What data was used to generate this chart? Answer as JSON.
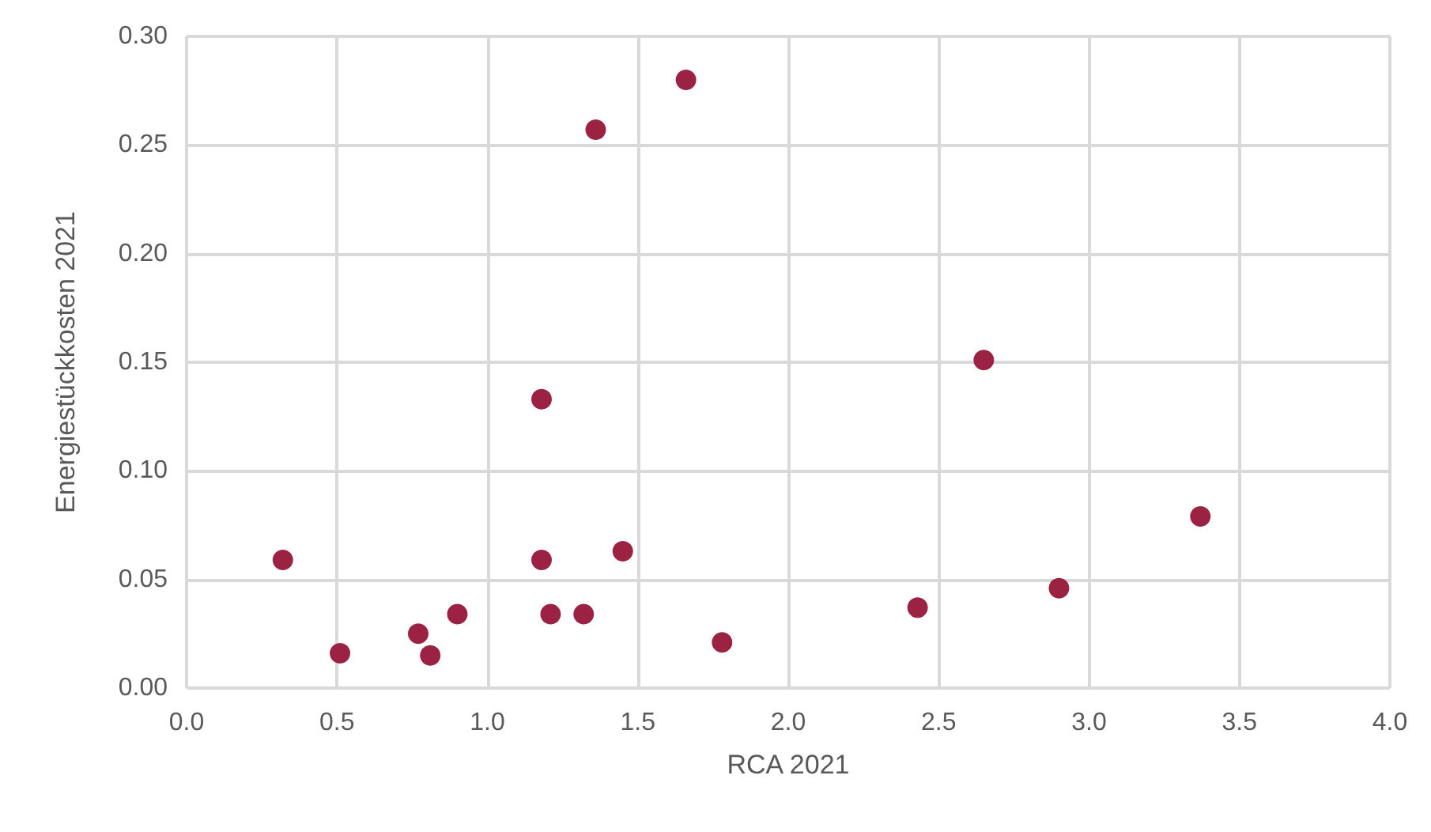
{
  "chart_data": {
    "type": "scatter",
    "xlabel": "RCA 2021",
    "ylabel": "Energiestückkosten 2021",
    "x": [
      0.32,
      0.51,
      0.77,
      0.81,
      0.9,
      1.18,
      1.18,
      1.21,
      1.32,
      1.36,
      1.45,
      1.66,
      1.78,
      2.43,
      2.65,
      2.9,
      3.37
    ],
    "series": [
      {
        "color": "#9b2242",
        "values": [
          0.059,
          0.016,
          0.025,
          0.015,
          0.034,
          0.133,
          0.059,
          0.034,
          0.034,
          0.257,
          0.063,
          0.28,
          0.021,
          0.037,
          0.151,
          0.046,
          0.079
        ]
      }
    ],
    "xlim": [
      0,
      4
    ],
    "xticks": [
      {
        "value": 0,
        "label": "0.0"
      },
      {
        "value": 0.5,
        "label": "0.5"
      },
      {
        "value": 1,
        "label": "1.0"
      },
      {
        "value": 1.5,
        "label": "1.5"
      },
      {
        "value": 2,
        "label": "2.0"
      },
      {
        "value": 2.5,
        "label": "2.5"
      },
      {
        "value": 3,
        "label": "3.0"
      },
      {
        "value": 3.5,
        "label": "3.5"
      },
      {
        "value": 4,
        "label": "4.0"
      }
    ],
    "ylim": [
      0,
      0.3
    ],
    "yticks": [
      {
        "value": 0,
        "label": "0.00"
      },
      {
        "value": 0.05,
        "label": "0.05"
      },
      {
        "value": 0.1,
        "label": "0.10"
      },
      {
        "value": 0.15,
        "label": "0.15"
      },
      {
        "value": 0.2,
        "label": "0.20"
      },
      {
        "value": 0.25,
        "label": "0.25"
      },
      {
        "value": 0.3,
        "label": "0.30"
      }
    ],
    "grid": true,
    "marker": "circle"
  }
}
